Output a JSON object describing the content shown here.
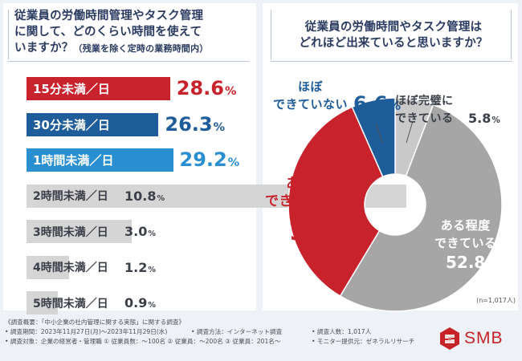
{
  "chart_data": [
    {
      "type": "bar",
      "title": "従業員の労働時間管理やタスク管理に関して、どのくらい時間を使えていますか？",
      "subtitle": "（残業を除く定時の業務時間内）",
      "categories": [
        "15分未満／日",
        "30分未満／日",
        "1時間未満／日",
        "2時間未満／日",
        "3時間未満／日",
        "4時間未満／日",
        "5時間未満／日"
      ],
      "values": [
        28.6,
        26.3,
        29.2,
        10.8,
        3.0,
        1.2,
        0.9
      ],
      "value_labels": [
        "28.6",
        "26.3",
        "29.2",
        "10.8",
        "3.0",
        "1.2",
        "0.9"
      ],
      "unit": "%",
      "colors": [
        "#c8232c",
        "#1f5c9a",
        "#2a8fd0",
        "#d5d5d5",
        "#d5d5d5",
        "#d5d5d5",
        "#d5d5d5"
      ],
      "value_colors": [
        "#c8232c",
        "#1f5c9a",
        "#2a8fd0",
        "#3b3f48",
        "#3b3f48",
        "#3b3f48",
        "#3b3f48"
      ]
    },
    {
      "type": "pie",
      "title": "従業員の労働時間やタスク管理はどれほど出来ていると思いますか？",
      "slices": [
        {
          "label": "ほぼ完璧に\nできている",
          "value": 5.8,
          "value_label": "5.8",
          "color": "#c9c9c9",
          "text_color": "#3b3f48"
        },
        {
          "label": "ある程度\nできている",
          "value": 52.8,
          "value_label": "52.8",
          "color": "#a6a6a6",
          "text_color": "#ffffff"
        },
        {
          "label": "あまり\nできていない",
          "value": 34.8,
          "value_label": "34.8",
          "color": "#c8232c",
          "text_color": "#c8232c"
        },
        {
          "label": "ほぼ\nできていない",
          "value": 6.6,
          "value_label": "6.6",
          "color": "#1f5c9a",
          "text_color": "#1f5c9a"
        }
      ],
      "unit": "%",
      "note": "(n=1,017人)"
    }
  ],
  "footer": {
    "line1": "《調査概要：「中小企業の社内管理に関する実態」に関する調査》",
    "line2a": "• 調査期間：2023年11月27日(月)〜2023年11月29日(水)",
    "line2b": "• 調査方法：インターネット調査",
    "line2c": "• 調査人数：1,017人",
    "line3a": "• 調査対象：企業の経営者・管理職 ① 従業員数：〜100名 ② 従業員：〜200名 ③ 従業員：201名〜",
    "line3b": "• モニター提供元：ゼネラルリサーチ"
  },
  "logo": {
    "text": "SMB",
    "color": "#c62329"
  }
}
